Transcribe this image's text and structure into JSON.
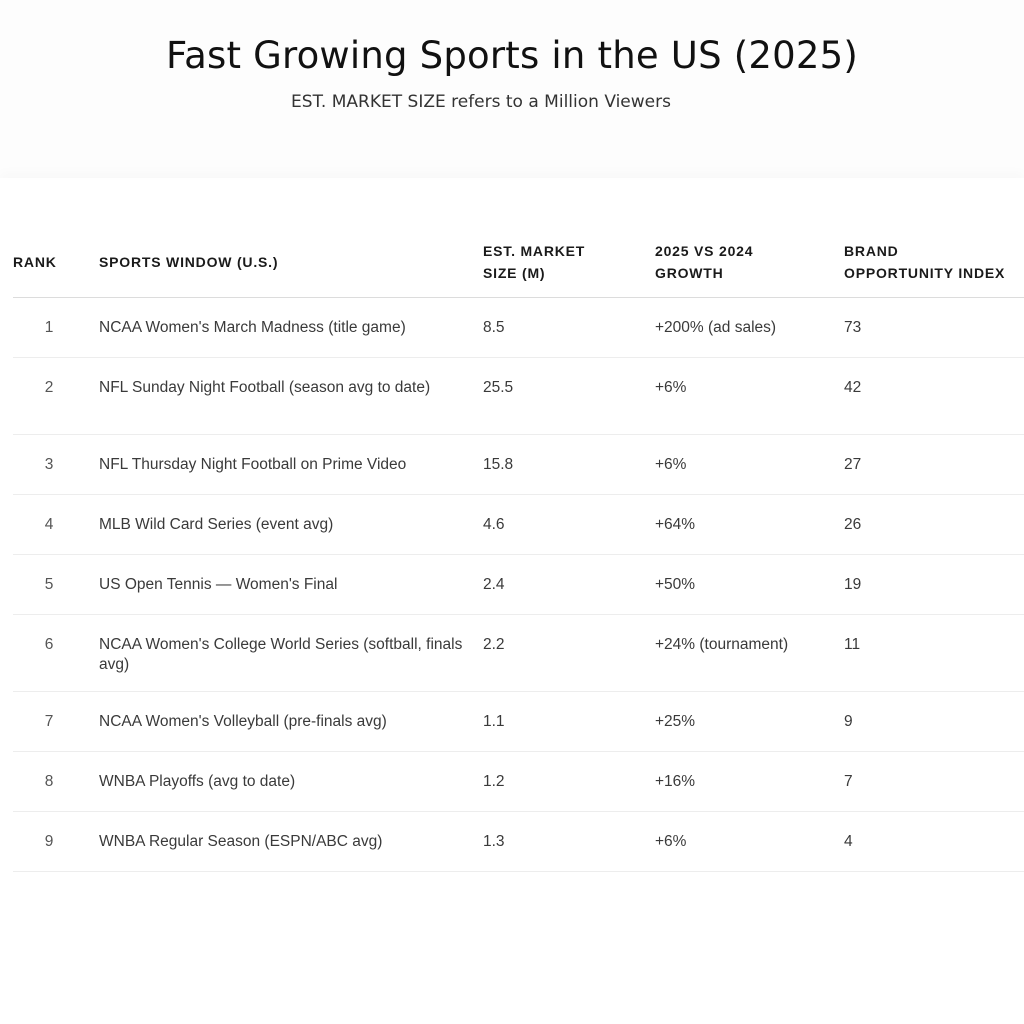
{
  "title": "Fast Growing Sports in the US (2025)",
  "subtitle": "EST. MARKET SIZE refers to a Million Viewers",
  "table": {
    "headers": {
      "rank": "RANK",
      "window": "SPORTS WINDOW (U.S.)",
      "market_line1": "EST. MARKET",
      "market_line2": "SIZE (M)",
      "growth_line1": "2025 VS 2024",
      "growth_line2": "GROWTH",
      "index_line1": "BRAND",
      "index_line2": "OPPORTUNITY INDEX"
    },
    "rows": [
      {
        "rank": "1",
        "window": "NCAA Women's March Madness (title game)",
        "market": "8.5",
        "growth": "+200% (ad sales)",
        "index": "73"
      },
      {
        "rank": "2",
        "window": "NFL Sunday Night Football (season avg to date)",
        "market": "25.5",
        "growth": "+6%",
        "index": "42"
      },
      {
        "rank": "3",
        "window": "NFL Thursday Night Football on Prime Video",
        "market": "15.8",
        "growth": "+6%",
        "index": "27"
      },
      {
        "rank": "4",
        "window": "MLB Wild Card Series (event avg)",
        "market": "4.6",
        "growth": "+64%",
        "index": "26"
      },
      {
        "rank": "5",
        "window": "US Open Tennis — Women's Final",
        "market": "2.4",
        "growth": "+50%",
        "index": "19"
      },
      {
        "rank": "6",
        "window": "NCAA Women's College World Series (softball, finals avg)",
        "market": "2.2",
        "growth": "+24% (tournament)",
        "index": "11"
      },
      {
        "rank": "7",
        "window": "NCAA Women's Volleyball (pre-finals avg)",
        "market": "1.1",
        "growth": "+25%",
        "index": "9"
      },
      {
        "rank": "8",
        "window": "WNBA Playoffs (avg to date)",
        "market": "1.2",
        "growth": "+16%",
        "index": "7"
      },
      {
        "rank": "9",
        "window": "WNBA Regular Season (ESPN/ABC avg)",
        "market": "1.3",
        "growth": "+6%",
        "index": "4"
      }
    ]
  }
}
